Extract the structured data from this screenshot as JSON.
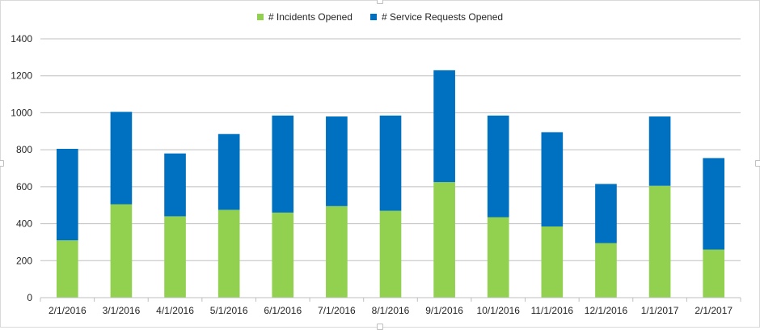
{
  "chart_data": {
    "type": "bar",
    "stacked": true,
    "categories": [
      "2/1/2016",
      "3/1/2016",
      "4/1/2016",
      "5/1/2016",
      "6/1/2016",
      "7/1/2016",
      "8/1/2016",
      "9/1/2016",
      "10/1/2016",
      "11/1/2016",
      "12/1/2016",
      "1/1/2017",
      "2/1/2017"
    ],
    "series": [
      {
        "name": "# Incidents Opened",
        "color": "#92d050",
        "values": [
          310,
          505,
          440,
          475,
          460,
          495,
          470,
          625,
          435,
          385,
          295,
          605,
          260
        ]
      },
      {
        "name": "# Service Requests Opened",
        "color": "#0070c0",
        "values": [
          495,
          500,
          340,
          410,
          525,
          485,
          515,
          605,
          550,
          510,
          320,
          375,
          495
        ]
      }
    ],
    "yticks": [
      0,
      200,
      400,
      600,
      800,
      1000,
      1200,
      1400
    ],
    "ylim": [
      0,
      1400
    ],
    "grid": true,
    "legend_position": "top-center"
  }
}
